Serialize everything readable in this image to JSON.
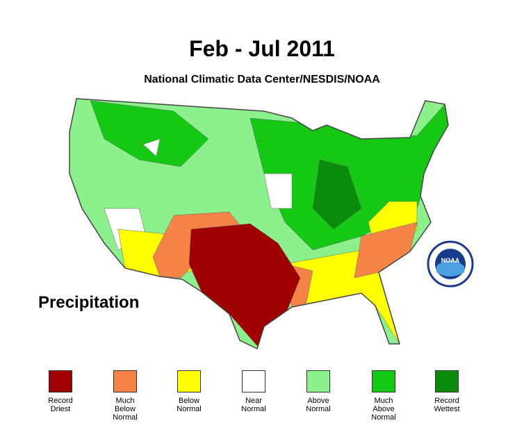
{
  "title": "Feb - Jul 2011",
  "subtitle": "National Climatic Data Center/NESDIS/NOAA",
  "map_label": "Precipitation",
  "logo_text": "NOAA",
  "legend": [
    {
      "label": "Record Driest",
      "color": "#a00000"
    },
    {
      "label": "Much Below Normal",
      "color": "#f58446"
    },
    {
      "label": "Below Normal",
      "color": "#ffff00"
    },
    {
      "label": "Near Normal",
      "color": "#ffffff"
    },
    {
      "label": "Above Normal",
      "color": "#8cf08c"
    },
    {
      "label": "Much Above Normal",
      "color": "#14c814"
    },
    {
      "label": "Record Wettest",
      "color": "#0a8c0a"
    }
  ]
}
